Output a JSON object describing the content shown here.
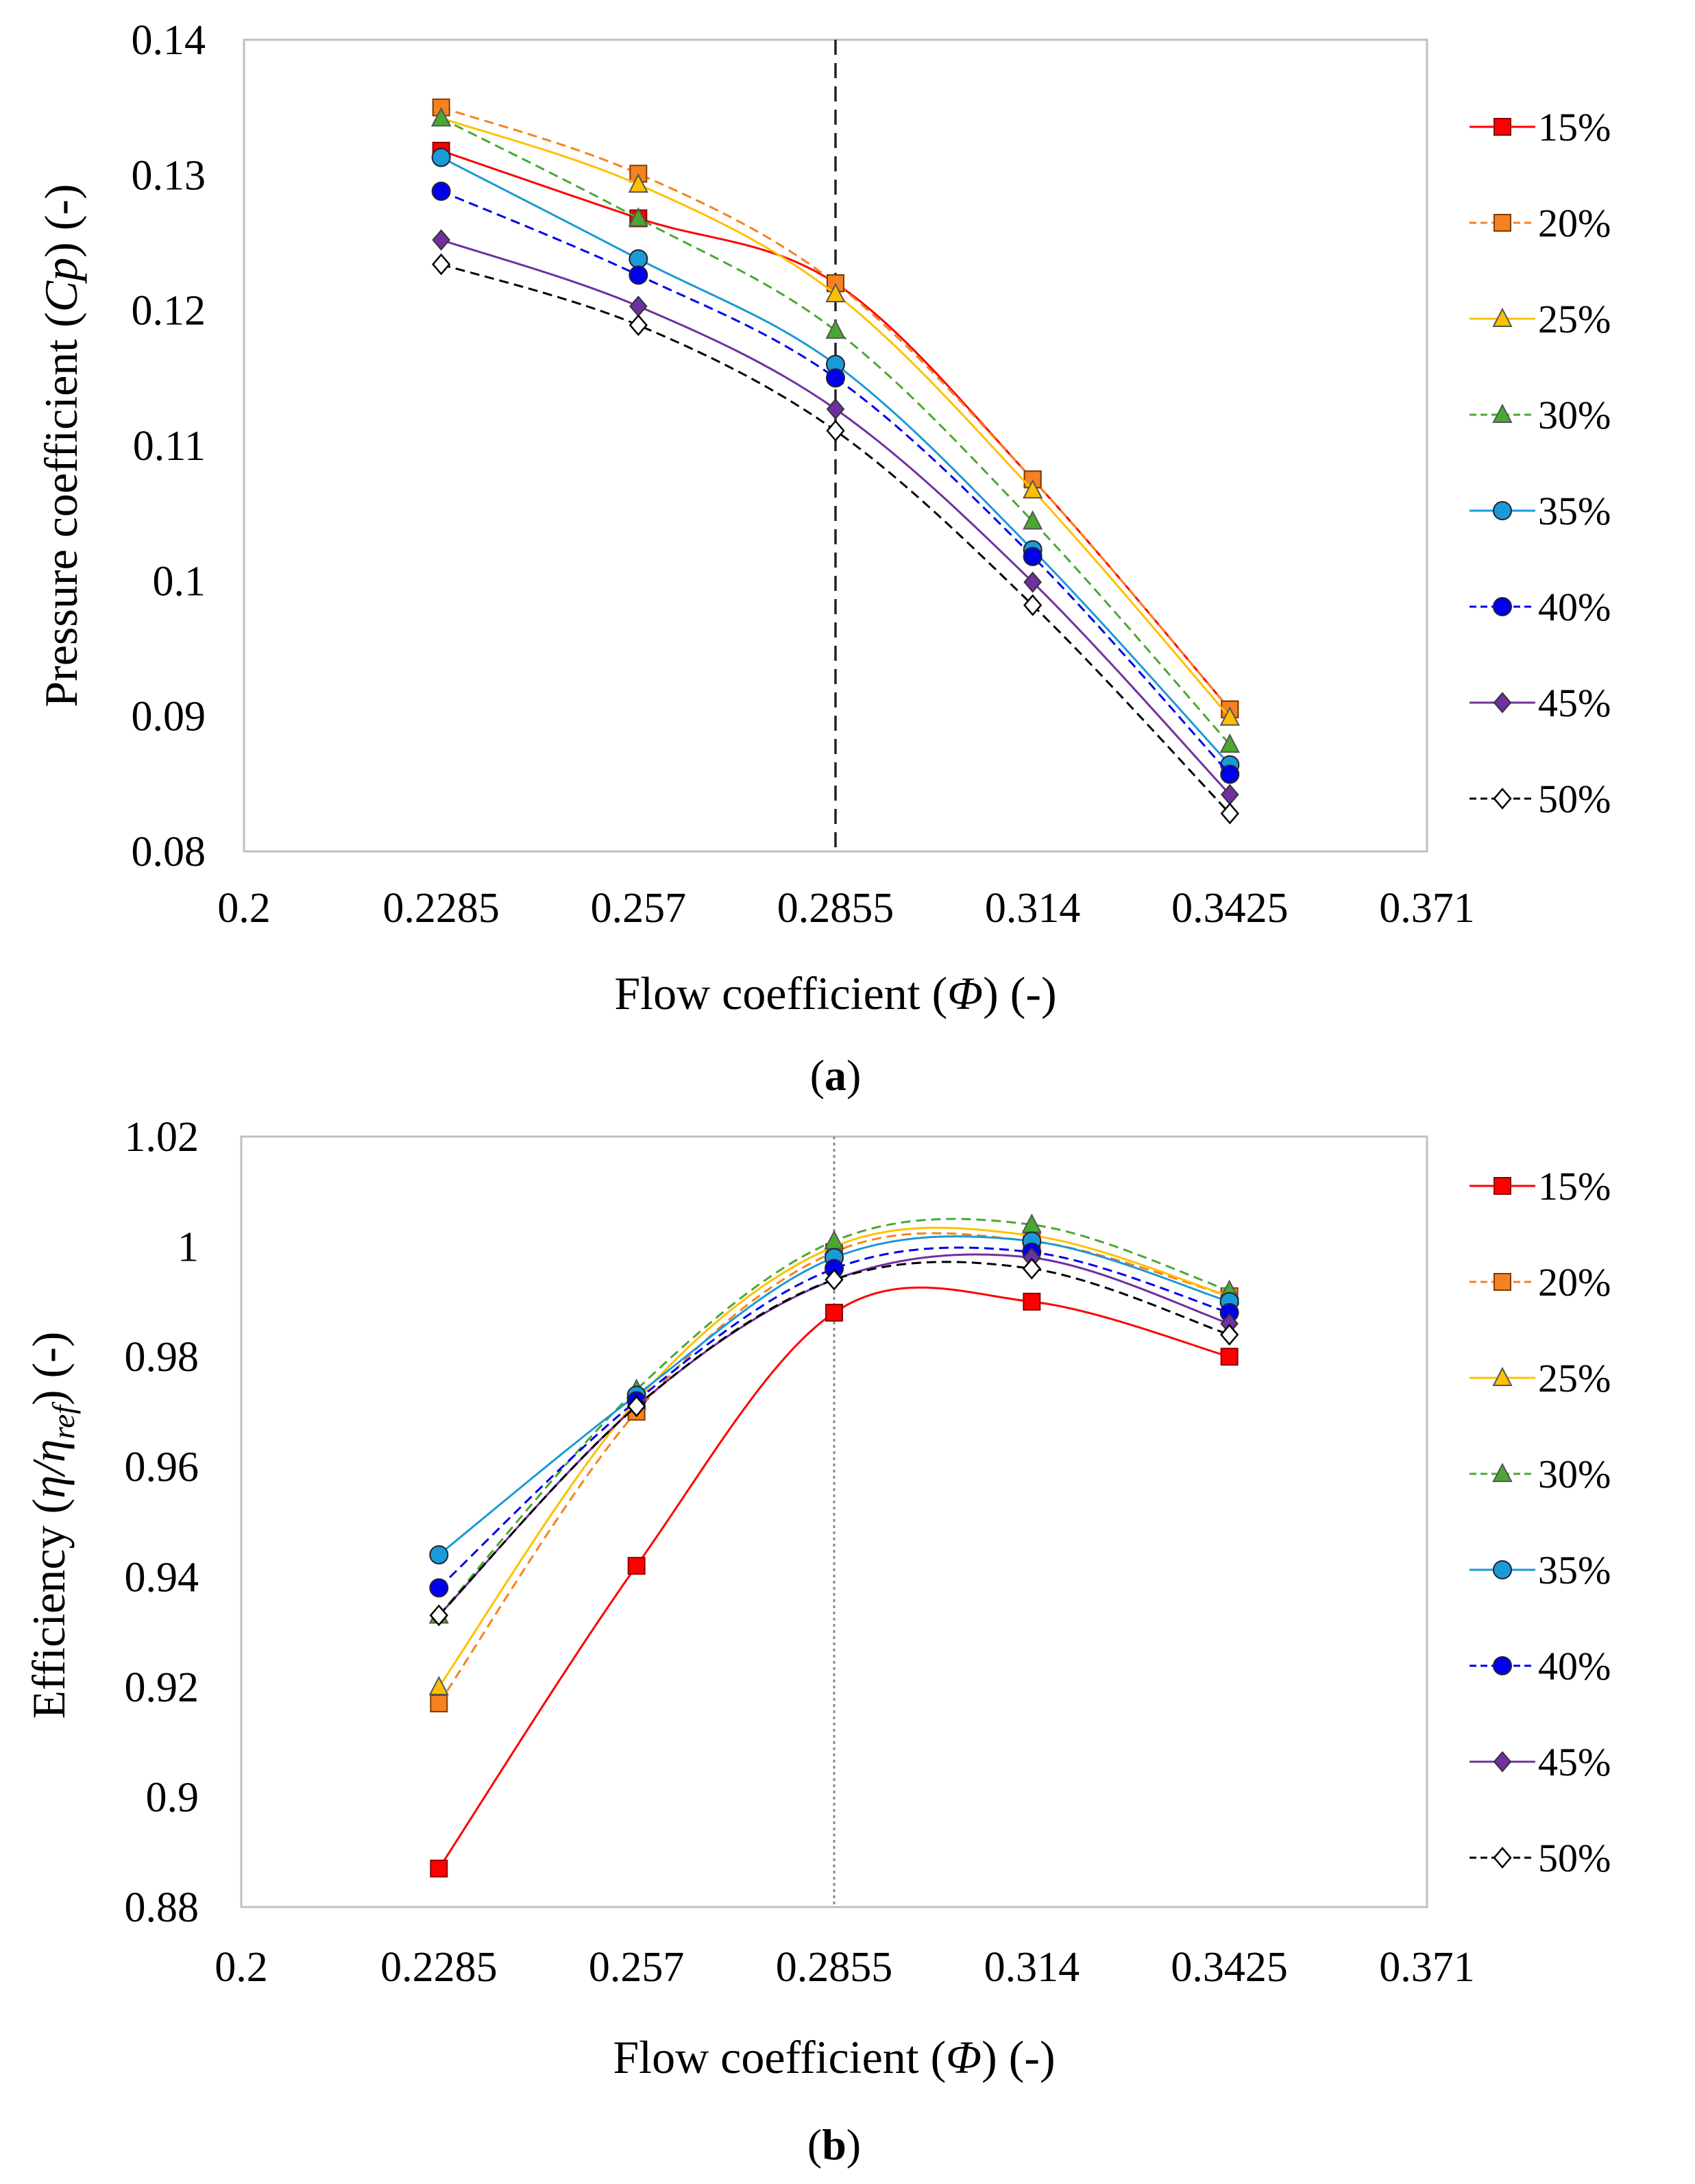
{
  "chart_data": [
    {
      "type": "line",
      "panel_label": "a",
      "ylabel_prefix": "Pressure coefficient (",
      "ylabel_symbol": "Cp",
      "ylabel_suffix": ") (-)",
      "xlabel_prefix": "Flow coefficient (",
      "xlabel_symbol": "Φ",
      "xlabel_suffix": ") (-)",
      "xlim": [
        0.2,
        0.371
      ],
      "ylim": [
        0.08,
        0.14
      ],
      "xticks": [
        "0.2",
        "0.2285",
        "0.257",
        "0.2855",
        "0.314",
        "0.3425",
        "0.371"
      ],
      "yticks": [
        "0.08",
        "0.09",
        "0.1",
        "0.11",
        "0.12",
        "0.13",
        "0.14"
      ],
      "x": [
        0.2285,
        0.257,
        0.2855,
        0.314,
        0.3425
      ],
      "reference_line_x": 0.2855,
      "reference_line_style": "dashed",
      "legend_position": "right",
      "series": [
        {
          "name": "15%",
          "color": "#ff0000",
          "dash": "solid",
          "marker": "square",
          "values": [
            0.1318,
            0.1268,
            0.122,
            0.1075,
            0.0905
          ]
        },
        {
          "name": "20%",
          "color": "#f58220",
          "dash": "dashed",
          "marker": "square",
          "values": [
            0.135,
            0.1301,
            0.122,
            0.1075,
            0.0905
          ]
        },
        {
          "name": "25%",
          "color": "#ffc000",
          "dash": "solid",
          "marker": "triangle",
          "values": [
            0.1342,
            0.1293,
            0.1212,
            0.1067,
            0.0899
          ]
        },
        {
          "name": "30%",
          "color": "#4aa832",
          "dash": "dashed",
          "marker": "triangle",
          "values": [
            0.1342,
            0.1268,
            0.1185,
            0.1044,
            0.0879
          ]
        },
        {
          "name": "35%",
          "color": "#1a9ad6",
          "dash": "solid",
          "marker": "circle",
          "values": [
            0.1313,
            0.1238,
            0.116,
            0.1023,
            0.0864
          ]
        },
        {
          "name": "40%",
          "color": "#0000ee",
          "dash": "dashed",
          "marker": "circle",
          "values": [
            0.1288,
            0.1226,
            0.115,
            0.1018,
            0.0857
          ]
        },
        {
          "name": "45%",
          "color": "#7030a0",
          "dash": "solid",
          "marker": "diamond",
          "values": [
            0.1252,
            0.1203,
            0.1127,
            0.0999,
            0.0842
          ]
        },
        {
          "name": "50%",
          "color": "#000000",
          "dash": "dashed",
          "marker": "diamond-open",
          "values": [
            0.1234,
            0.1189,
            0.1111,
            0.0982,
            0.0828
          ]
        }
      ]
    },
    {
      "type": "line",
      "panel_label": "b",
      "ylabel_prefix": "Efficiency (",
      "ylabel_symbol": "η/η",
      "ylabel_sub": "ref",
      "ylabel_suffix": ") (-)",
      "xlabel_prefix": "Flow coefficient (",
      "xlabel_symbol": "Φ",
      "xlabel_suffix": ") (-)",
      "xlim": [
        0.2,
        0.371
      ],
      "ylim": [
        0.88,
        1.02
      ],
      "xticks": [
        "0.2",
        "0.2285",
        "0.257",
        "0.2855",
        "0.314",
        "0.3425",
        "0.371"
      ],
      "yticks": [
        "0.88",
        "0.9",
        "0.92",
        "0.94",
        "0.96",
        "0.98",
        "1",
        "1.02"
      ],
      "x": [
        0.2285,
        0.257,
        0.2855,
        0.314,
        0.3425
      ],
      "reference_line_x": 0.2855,
      "reference_line_style": "dotted",
      "legend_position": "right",
      "series": [
        {
          "name": "15%",
          "color": "#ff0000",
          "dash": "solid",
          "marker": "square",
          "values": [
            0.887,
            0.942,
            0.988,
            0.99,
            0.98
          ]
        },
        {
          "name": "20%",
          "color": "#f58220",
          "dash": "dashed",
          "marker": "square",
          "values": [
            0.917,
            0.97,
            0.999,
            1.001,
            0.991
          ]
        },
        {
          "name": "25%",
          "color": "#ffc000",
          "dash": "solid",
          "marker": "triangle",
          "values": [
            0.92,
            0.972,
            1.0,
            1.002,
            0.991
          ]
        },
        {
          "name": "30%",
          "color": "#4aa832",
          "dash": "dashed",
          "marker": "triangle",
          "values": [
            0.933,
            0.974,
            1.001,
            1.004,
            0.992
          ]
        },
        {
          "name": "35%",
          "color": "#1a9ad6",
          "dash": "solid",
          "marker": "circle",
          "values": [
            0.944,
            0.973,
            0.998,
            1.001,
            0.99
          ]
        },
        {
          "name": "40%",
          "color": "#0000ee",
          "dash": "dashed",
          "marker": "circle",
          "values": [
            0.938,
            0.972,
            0.996,
            0.999,
            0.988
          ]
        },
        {
          "name": "45%",
          "color": "#7030a0",
          "dash": "solid",
          "marker": "diamond",
          "values": [
            0.933,
            0.971,
            0.994,
            0.998,
            0.986
          ]
        },
        {
          "name": "50%",
          "color": "#000000",
          "dash": "dashed",
          "marker": "diamond-open",
          "values": [
            0.933,
            0.971,
            0.994,
            0.996,
            0.984
          ]
        }
      ]
    }
  ]
}
